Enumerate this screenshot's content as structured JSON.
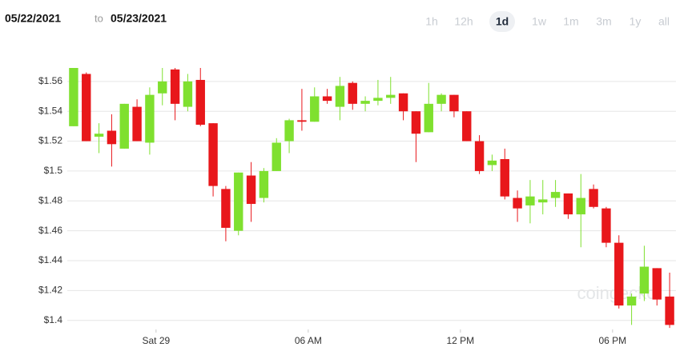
{
  "header": {
    "start_date": "05/22/2021",
    "separator": "to",
    "end_date": "05/23/2021",
    "ranges": [
      "1h",
      "12h",
      "1d",
      "1w",
      "1m",
      "3m",
      "1y",
      "all"
    ],
    "active_range": "1d"
  },
  "watermark": "coingecko",
  "chart_data": {
    "type": "candlestick",
    "xlim": [
      0,
      48
    ],
    "xticks": [
      {
        "value": 7,
        "label": "Sat 29"
      },
      {
        "value": 19,
        "label": "06 AM"
      },
      {
        "value": 31,
        "label": "12 PM"
      },
      {
        "value": 43,
        "label": "06 PM"
      }
    ],
    "ylim": [
      1.394,
      1.569
    ],
    "yticks": [
      {
        "value": 1.4,
        "label": "$1.4"
      },
      {
        "value": 1.42,
        "label": "$1.42"
      },
      {
        "value": 1.44,
        "label": "$1.44"
      },
      {
        "value": 1.46,
        "label": "$1.46"
      },
      {
        "value": 1.48,
        "label": "$1.48"
      },
      {
        "value": 1.5,
        "label": "$1.5"
      },
      {
        "value": 1.52,
        "label": "$1.52"
      },
      {
        "value": 1.54,
        "label": "$1.54"
      },
      {
        "value": 1.56,
        "label": "$1.56"
      }
    ],
    "grid": true,
    "up_color": "#7fe02f",
    "down_color": "#e8171b",
    "open": [
      1.53,
      1.565,
      1.523,
      1.527,
      1.515,
      1.543,
      1.519,
      1.552,
      1.568,
      1.543,
      1.561,
      1.532,
      1.488,
      1.46,
      1.497,
      1.482,
      1.5,
      1.52,
      1.534,
      1.533,
      1.55,
      1.543,
      1.559,
      1.545,
      1.547,
      1.549,
      1.552,
      1.54,
      1.526,
      1.545,
      1.551,
      1.54,
      1.52,
      1.504,
      1.508,
      1.482,
      1.477,
      1.479,
      1.482,
      1.485,
      1.471,
      1.488,
      1.475,
      1.452,
      1.41,
      1.418,
      1.435,
      1.416
    ],
    "high": [
      1.569,
      1.566,
      1.532,
      1.538,
      1.545,
      1.548,
      1.556,
      1.569,
      1.569,
      1.565,
      1.569,
      1.532,
      1.49,
      1.499,
      1.506,
      1.502,
      1.522,
      1.535,
      1.555,
      1.556,
      1.555,
      1.563,
      1.56,
      1.55,
      1.561,
      1.563,
      1.552,
      1.54,
      1.559,
      1.552,
      1.551,
      1.54,
      1.524,
      1.511,
      1.515,
      1.487,
      1.494,
      1.494,
      1.494,
      1.485,
      1.498,
      1.491,
      1.476,
      1.457,
      1.418,
      1.45,
      1.435,
      1.432
    ],
    "low": [
      1.53,
      1.52,
      1.512,
      1.503,
      1.515,
      1.52,
      1.511,
      1.544,
      1.534,
      1.54,
      1.53,
      1.483,
      1.453,
      1.457,
      1.466,
      1.479,
      1.5,
      1.512,
      1.527,
      1.533,
      1.545,
      1.534,
      1.541,
      1.54,
      1.544,
      1.545,
      1.534,
      1.506,
      1.526,
      1.54,
      1.536,
      1.52,
      1.498,
      1.5,
      1.481,
      1.466,
      1.465,
      1.471,
      1.476,
      1.468,
      1.449,
      1.475,
      1.449,
      1.408,
      1.397,
      1.413,
      1.41,
      1.395
    ],
    "close": [
      1.569,
      1.52,
      1.525,
      1.518,
      1.545,
      1.52,
      1.551,
      1.56,
      1.545,
      1.56,
      1.531,
      1.49,
      1.462,
      1.499,
      1.478,
      1.5,
      1.519,
      1.534,
      1.533,
      1.55,
      1.547,
      1.557,
      1.545,
      1.547,
      1.549,
      1.551,
      1.54,
      1.525,
      1.545,
      1.551,
      1.54,
      1.52,
      1.5,
      1.507,
      1.483,
      1.475,
      1.483,
      1.481,
      1.486,
      1.471,
      1.482,
      1.476,
      1.452,
      1.41,
      1.416,
      1.436,
      1.414,
      1.397
    ]
  }
}
